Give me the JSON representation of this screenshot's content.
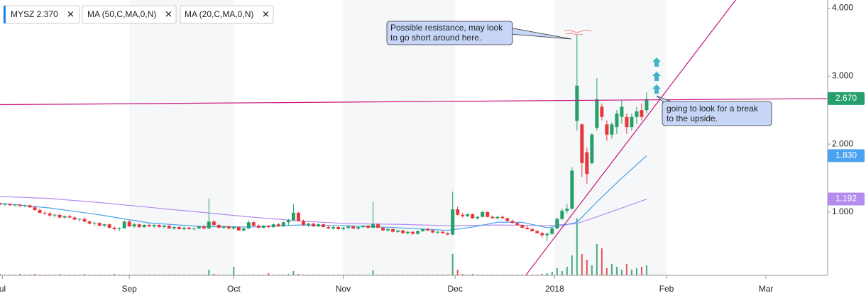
{
  "chart_data": {
    "type": "candlestick",
    "name": "MYSZ 2.370",
    "up_color": "#26a06a",
    "down_color": "#e8383d",
    "xlim": [
      0,
      166.4
    ],
    "ylim": [
      0.07,
      4.12
    ],
    "yticks": [
      {
        "value": 1,
        "label": "1.000"
      },
      {
        "value": 2,
        "label": "2.000"
      },
      {
        "value": 3,
        "label": "3.000"
      },
      {
        "value": 4,
        "label": "4.000"
      }
    ],
    "xticks": [
      {
        "value": 0.5,
        "label": "ul"
      },
      {
        "value": 26,
        "label": "Sep"
      },
      {
        "value": 47,
        "label": "Oct"
      },
      {
        "value": 69,
        "label": "Nov"
      },
      {
        "value": 91.5,
        "label": "Dec"
      },
      {
        "value": 111.5,
        "label": "2018"
      },
      {
        "value": 134,
        "label": "Feb"
      },
      {
        "value": 154,
        "label": "Mar"
      }
    ],
    "ohlc": [
      [
        1.12,
        1.14,
        1.1,
        1.11
      ],
      [
        1.11,
        1.13,
        1.09,
        1.12
      ],
      [
        1.12,
        1.13,
        1.09,
        1.1
      ],
      [
        1.1,
        1.12,
        1.08,
        1.11
      ],
      [
        1.11,
        1.12,
        1.08,
        1.09
      ],
      [
        1.09,
        1.11,
        1.07,
        1.1
      ],
      [
        1.1,
        1.11,
        1.06,
        1.07
      ],
      [
        1.07,
        1.09,
        1.02,
        1.03
      ],
      [
        1.03,
        1.05,
        0.98,
        0.99
      ],
      [
        0.99,
        1.01,
        0.96,
        0.98
      ],
      [
        0.98,
        1.0,
        0.93,
        0.95
      ],
      [
        0.95,
        0.98,
        0.92,
        0.96
      ],
      [
        0.96,
        0.97,
        0.91,
        0.92
      ],
      [
        0.92,
        0.95,
        0.9,
        0.94
      ],
      [
        0.94,
        0.96,
        0.91,
        0.92
      ],
      [
        0.92,
        0.94,
        0.88,
        0.89
      ],
      [
        0.89,
        0.91,
        0.86,
        0.9
      ],
      [
        0.9,
        0.92,
        0.85,
        0.86
      ],
      [
        0.86,
        0.88,
        0.82,
        0.83
      ],
      [
        0.83,
        0.86,
        0.8,
        0.84
      ],
      [
        0.84,
        0.85,
        0.79,
        0.8
      ],
      [
        0.8,
        0.83,
        0.78,
        0.82
      ],
      [
        0.82,
        0.83,
        0.76,
        0.77
      ],
      [
        0.77,
        0.79,
        0.73,
        0.75
      ],
      [
        0.75,
        0.78,
        0.72,
        0.76
      ],
      [
        0.76,
        0.88,
        0.76,
        0.86
      ],
      [
        0.86,
        0.88,
        0.78,
        0.79
      ],
      [
        0.79,
        0.84,
        0.77,
        0.82
      ],
      [
        0.82,
        0.83,
        0.77,
        0.78
      ],
      [
        0.78,
        0.82,
        0.77,
        0.81
      ],
      [
        0.81,
        0.83,
        0.78,
        0.79
      ],
      [
        0.79,
        0.82,
        0.77,
        0.81
      ],
      [
        0.81,
        0.82,
        0.77,
        0.78
      ],
      [
        0.78,
        0.81,
        0.76,
        0.8
      ],
      [
        0.8,
        0.81,
        0.75,
        0.76
      ],
      [
        0.76,
        0.79,
        0.74,
        0.78
      ],
      [
        0.78,
        0.79,
        0.74,
        0.75
      ],
      [
        0.75,
        0.78,
        0.73,
        0.77
      ],
      [
        0.77,
        0.78,
        0.74,
        0.75
      ],
      [
        0.75,
        0.77,
        0.73,
        0.76
      ],
      [
        0.76,
        0.8,
        0.75,
        0.79
      ],
      [
        0.79,
        0.8,
        0.75,
        0.76
      ],
      [
        0.76,
        1.2,
        0.75,
        0.86
      ],
      [
        0.86,
        0.88,
        0.8,
        0.81
      ],
      [
        0.81,
        0.83,
        0.76,
        0.77
      ],
      [
        0.77,
        0.8,
        0.75,
        0.79
      ],
      [
        0.79,
        0.8,
        0.75,
        0.76
      ],
      [
        0.76,
        0.79,
        0.74,
        0.78
      ],
      [
        0.78,
        0.79,
        0.72,
        0.73
      ],
      [
        0.73,
        0.77,
        0.72,
        0.76
      ],
      [
        0.76,
        0.88,
        0.75,
        0.85
      ],
      [
        0.85,
        0.87,
        0.79,
        0.8
      ],
      [
        0.8,
        0.82,
        0.76,
        0.77
      ],
      [
        0.77,
        0.81,
        0.76,
        0.8
      ],
      [
        0.8,
        0.81,
        0.76,
        0.78
      ],
      [
        0.78,
        0.83,
        0.77,
        0.82
      ],
      [
        0.82,
        0.84,
        0.78,
        0.79
      ],
      [
        0.79,
        0.86,
        0.78,
        0.85
      ],
      [
        0.85,
        0.9,
        0.8,
        0.88
      ],
      [
        0.88,
        1.12,
        0.87,
        0.99
      ],
      [
        0.99,
        1.0,
        0.86,
        0.87
      ],
      [
        0.87,
        0.89,
        0.8,
        0.81
      ],
      [
        0.81,
        0.84,
        0.78,
        0.83
      ],
      [
        0.83,
        0.84,
        0.78,
        0.79
      ],
      [
        0.79,
        0.83,
        0.78,
        0.82
      ],
      [
        0.82,
        0.83,
        0.77,
        0.78
      ],
      [
        0.78,
        0.8,
        0.75,
        0.76
      ],
      [
        0.76,
        0.79,
        0.74,
        0.78
      ],
      [
        0.78,
        0.79,
        0.74,
        0.75
      ],
      [
        0.75,
        0.78,
        0.73,
        0.77
      ],
      [
        0.77,
        0.8,
        0.75,
        0.79
      ],
      [
        0.79,
        0.8,
        0.75,
        0.76
      ],
      [
        0.76,
        0.79,
        0.74,
        0.78
      ],
      [
        0.78,
        0.81,
        0.76,
        0.8
      ],
      [
        0.8,
        0.81,
        0.76,
        0.77
      ],
      [
        0.77,
        1.15,
        0.76,
        0.82
      ],
      [
        0.82,
        0.84,
        0.76,
        0.77
      ],
      [
        0.77,
        0.78,
        0.72,
        0.73
      ],
      [
        0.73,
        0.76,
        0.71,
        0.75
      ],
      [
        0.75,
        0.76,
        0.7,
        0.71
      ],
      [
        0.71,
        0.74,
        0.69,
        0.73
      ],
      [
        0.73,
        0.74,
        0.68,
        0.69
      ],
      [
        0.69,
        0.72,
        0.67,
        0.71
      ],
      [
        0.71,
        0.72,
        0.67,
        0.68
      ],
      [
        0.68,
        0.73,
        0.67,
        0.72
      ],
      [
        0.72,
        0.76,
        0.71,
        0.75
      ],
      [
        0.75,
        0.77,
        0.72,
        0.73
      ],
      [
        0.73,
        0.74,
        0.69,
        0.7
      ],
      [
        0.7,
        0.72,
        0.68,
        0.71
      ],
      [
        0.71,
        0.72,
        0.68,
        0.69
      ],
      [
        0.69,
        0.7,
        0.66,
        0.67
      ],
      [
        0.67,
        1.3,
        0.66,
        1.04
      ],
      [
        1.04,
        1.08,
        0.95,
        0.96
      ],
      [
        0.96,
        0.99,
        0.92,
        0.94
      ],
      [
        0.94,
        0.98,
        0.93,
        0.97
      ],
      [
        0.97,
        0.98,
        0.9,
        0.91
      ],
      [
        0.91,
        0.94,
        0.89,
        0.93
      ],
      [
        0.93,
        1.02,
        0.92,
        1.0
      ],
      [
        1.0,
        1.01,
        0.92,
        0.93
      ],
      [
        0.93,
        0.95,
        0.9,
        0.91
      ],
      [
        0.91,
        0.94,
        0.89,
        0.93
      ],
      [
        0.93,
        0.95,
        0.9,
        0.91
      ],
      [
        0.91,
        0.92,
        0.86,
        0.87
      ],
      [
        0.87,
        0.89,
        0.83,
        0.84
      ],
      [
        0.84,
        0.85,
        0.8,
        0.81
      ],
      [
        0.81,
        0.82,
        0.76,
        0.77
      ],
      [
        0.77,
        0.8,
        0.74,
        0.75
      ],
      [
        0.75,
        0.77,
        0.71,
        0.72
      ],
      [
        0.72,
        0.74,
        0.68,
        0.69
      ],
      [
        0.69,
        0.71,
        0.62,
        0.66
      ],
      [
        0.66,
        0.7,
        0.57,
        0.68
      ],
      [
        0.68,
        0.78,
        0.66,
        0.76
      ],
      [
        0.76,
        0.92,
        0.75,
        0.9
      ],
      [
        0.9,
        1.05,
        0.88,
        1.02
      ],
      [
        1.02,
        1.12,
        0.98,
        1.05
      ],
      [
        1.05,
        1.66,
        1.04,
        1.61
      ],
      [
        2.34,
        3.62,
        2.2,
        2.86
      ],
      [
        2.29,
        2.3,
        1.52,
        1.72
      ],
      [
        1.88,
        1.95,
        1.42,
        1.56
      ],
      [
        1.72,
        2.16,
        1.7,
        2.14
      ],
      [
        2.24,
        2.97,
        2.2,
        2.66
      ],
      [
        2.55,
        2.6,
        2.35,
        2.4
      ],
      [
        2.29,
        2.35,
        2.05,
        2.14
      ],
      [
        2.14,
        2.32,
        2.08,
        2.29
      ],
      [
        2.25,
        2.5,
        2.15,
        2.45
      ],
      [
        2.4,
        2.65,
        2.3,
        2.55
      ],
      [
        2.4,
        2.45,
        2.15,
        2.25
      ],
      [
        2.25,
        2.45,
        2.2,
        2.4
      ],
      [
        2.4,
        2.55,
        2.3,
        2.48
      ],
      [
        2.5,
        2.6,
        2.35,
        2.4
      ],
      [
        2.5,
        2.76,
        2.45,
        2.66
      ]
    ],
    "volume": [
      2,
      1,
      1,
      1,
      2,
      1,
      1,
      2,
      1,
      1,
      1,
      1,
      2,
      1,
      1,
      1,
      1,
      2,
      1,
      1,
      1,
      1,
      1,
      2,
      1,
      1,
      1,
      1,
      1,
      1,
      1,
      1,
      1,
      1,
      1,
      1,
      1,
      1,
      1,
      1,
      1,
      1,
      8,
      2,
      1,
      1,
      1,
      12,
      1,
      1,
      1,
      1,
      1,
      1,
      3,
      1,
      1,
      1,
      2,
      6,
      2,
      1,
      1,
      1,
      1,
      1,
      1,
      1,
      1,
      1,
      1,
      1,
      1,
      1,
      1,
      7,
      1,
      1,
      1,
      1,
      1,
      1,
      1,
      1,
      1,
      1,
      1,
      1,
      1,
      1,
      1,
      30,
      8,
      2,
      1,
      2,
      1,
      1,
      1,
      1,
      1,
      1,
      1,
      1,
      1,
      1,
      1,
      1,
      1,
      2,
      3,
      5,
      10,
      6,
      12,
      28,
      80,
      30,
      22,
      14,
      44,
      38,
      10,
      16,
      12,
      8,
      16,
      8,
      10,
      12,
      14
    ],
    "ma": [
      {
        "name": "MA (50,C,MA,0,N)",
        "color": "#b48cf0",
        "x": [
          0,
          10,
          20,
          30,
          40,
          50,
          60,
          70,
          80,
          90,
          100,
          110,
          116,
          120,
          125,
          130
        ],
        "values": [
          1.23,
          1.2,
          1.14,
          1.07,
          1.0,
          0.93,
          0.87,
          0.83,
          0.82,
          0.8,
          0.81,
          0.8,
          0.83,
          0.93,
          1.06,
          1.19
        ],
        "end_label": {
          "value": 1.192,
          "label": "1.192"
        }
      },
      {
        "name": "MA (20,C,MA,0,N)",
        "color": "#4aa3f0",
        "x": [
          0,
          10,
          20,
          30,
          40,
          50,
          60,
          70,
          80,
          90,
          95,
          100,
          105,
          110,
          113,
          116,
          120,
          125,
          130
        ],
        "values": [
          1.13,
          1.06,
          0.96,
          0.84,
          0.79,
          0.78,
          0.81,
          0.8,
          0.77,
          0.73,
          0.78,
          0.85,
          0.85,
          0.77,
          0.8,
          0.85,
          1.15,
          1.5,
          1.83
        ],
        "end_label": {
          "value": 1.83,
          "label": "1.830"
        }
      }
    ],
    "trendlines": [
      {
        "color": "#c8147f",
        "points": [
          [
            0,
            2.58
          ],
          [
            166.4,
            2.67
          ]
        ],
        "end_label": {
          "value": 2.67,
          "label": "2.670"
        }
      },
      {
        "color": "#c8147f",
        "points": [
          [
            105.7,
            0.07
          ],
          [
            147.9,
            4.12
          ]
        ]
      }
    ],
    "annotations": [
      {
        "lines": [
          "Possible resistance, may look",
          "to go short around here."
        ]
      },
      {
        "lines": [
          "going to look for a break",
          "to the upside."
        ]
      }
    ]
  }
}
